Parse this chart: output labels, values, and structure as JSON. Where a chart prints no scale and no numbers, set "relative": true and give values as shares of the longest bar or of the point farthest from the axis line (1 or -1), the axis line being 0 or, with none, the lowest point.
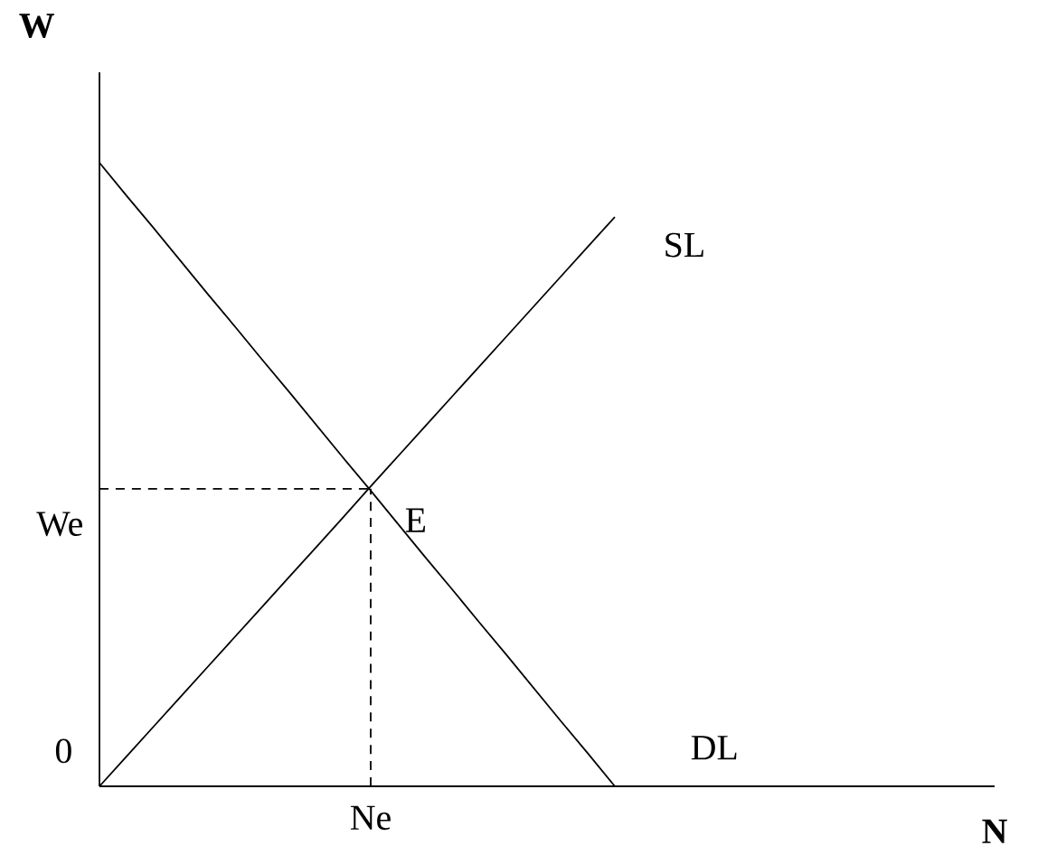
{
  "chart_data": {
    "type": "line",
    "xlabel": "N",
    "ylabel": "W",
    "relative": true,
    "categories": [
      null,
      null,
      null,
      null,
      null,
      null,
      null,
      null,
      null,
      null,
      null,
      null,
      null,
      null,
      null,
      null,
      null,
      null,
      null,
      null,
      null,
      null,
      null,
      null,
      null,
      null,
      null,
      null,
      null,
      null,
      null,
      null,
      null,
      null
    ],
    "series": [
      {
        "name": "SL",
        "color": "#000000",
        "values": [
          0,
          0.048,
          0.096,
          0.144,
          0.192,
          0.24,
          0.288,
          0.336,
          0.384,
          0.432,
          0.481,
          0.529,
          0.577,
          0.625,
          0.673,
          0.721,
          0.769,
          0.817,
          0.865,
          0.913,
          null,
          null,
          null,
          null,
          null,
          null,
          null,
          null,
          null,
          null,
          null,
          null,
          null,
          null
        ]
      },
      {
        "name": "DL",
        "color": "#000000",
        "values": [
          1,
          0.947,
          0.895,
          0.842,
          0.789,
          0.737,
          0.684,
          0.632,
          0.579,
          0.526,
          0.474,
          0.421,
          0.368,
          0.316,
          0.263,
          0.211,
          0.158,
          0.105,
          0.053,
          0,
          null,
          null,
          null,
          null,
          null,
          null,
          null,
          null,
          null,
          null,
          null,
          null,
          null,
          null
        ]
      }
    ],
    "ref_lines": [
      {
        "axis": "y",
        "value": 0.477,
        "label": "We",
        "line_style": "dashed",
        "color": "#000000"
      }
    ],
    "annotations": [
      "E",
      "Ne",
      "0"
    ],
    "marker": "none",
    "line_style": "solid"
  }
}
